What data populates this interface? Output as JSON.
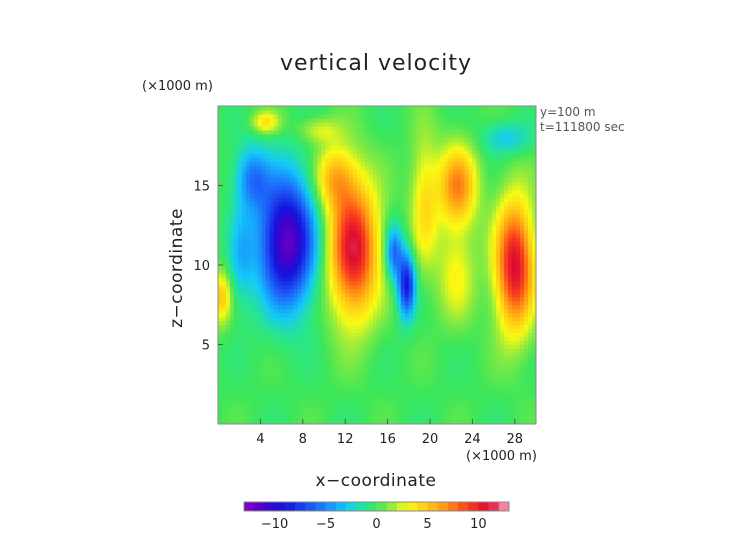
{
  "chart_data": {
    "type": "heatmap",
    "title": "vertical velocity",
    "xlabel": "x−coordinate",
    "ylabel": "z−coordinate",
    "x_unit": "(×1000 m)",
    "y_unit": "(×1000 m)",
    "info_lines": [
      "y=100 m",
      "t=111800 sec"
    ],
    "xlim": [
      0,
      30
    ],
    "ylim": [
      0,
      20
    ],
    "x_ticks": [
      {
        "value": 4,
        "label": "4"
      },
      {
        "value": 8,
        "label": "8"
      },
      {
        "value": 12,
        "label": "12"
      },
      {
        "value": 16,
        "label": "16"
      },
      {
        "value": 20,
        "label": "20"
      },
      {
        "value": 24,
        "label": "24"
      },
      {
        "value": 28,
        "label": "28"
      }
    ],
    "y_ticks": [
      {
        "value": 5,
        "label": "5"
      },
      {
        "value": 10,
        "label": "10"
      },
      {
        "value": 15,
        "label": "15"
      }
    ],
    "colorbar": {
      "range": [
        -13,
        13
      ],
      "ticks": [
        {
          "value": -10,
          "label": "−10"
        },
        {
          "value": -5,
          "label": "−5"
        },
        {
          "value": 0,
          "label": "0"
        },
        {
          "value": 5,
          "label": "5"
        },
        {
          "value": 10,
          "label": "10"
        }
      ]
    },
    "features": [
      {
        "type": "downdraft",
        "x": 6.5,
        "z": 11.5,
        "value": -13
      },
      {
        "type": "downdraft",
        "x": 2.5,
        "z": 15,
        "value": -4
      },
      {
        "type": "updraft",
        "x": 12.5,
        "z": 11,
        "value": 11
      },
      {
        "type": "downdraft",
        "x": 17.8,
        "z": 8.5,
        "value": -8
      },
      {
        "type": "downdraft",
        "x": 16.5,
        "z": 11,
        "value": -5
      },
      {
        "type": "updraft",
        "x": 22.5,
        "z": 15,
        "value": 7
      },
      {
        "type": "updraft",
        "x": 28,
        "z": 10,
        "value": 11
      },
      {
        "type": "downdraft",
        "x": 28,
        "z": 18,
        "value": -3
      }
    ]
  }
}
